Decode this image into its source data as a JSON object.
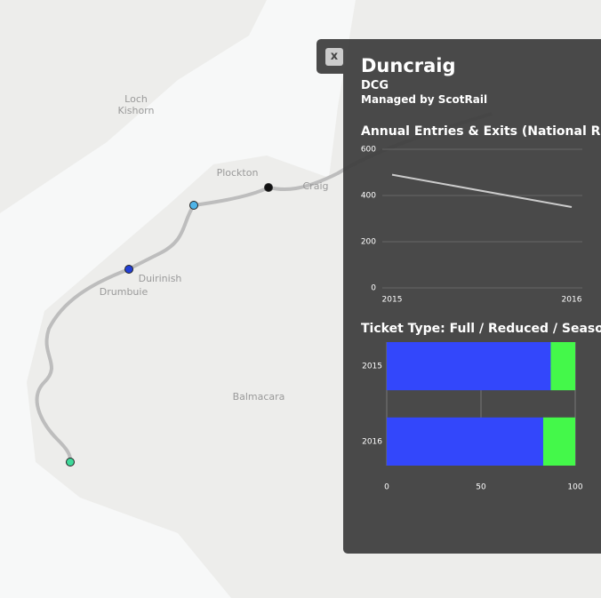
{
  "map": {
    "labels": [
      "Loch",
      "Kishorn",
      "Plockton",
      "Craig",
      "Duirinish",
      "Drumbuie",
      "Balmacara"
    ]
  },
  "panel": {
    "close": "x",
    "title": "Duncraig",
    "code": "DCG",
    "manager": "Managed by ScotRail"
  },
  "chart_data": [
    {
      "type": "line",
      "title": "Annual Entries & Exits (National Rail)",
      "categories": [
        "2015",
        "2016"
      ],
      "values": [
        490,
        350
      ],
      "color": "#cccccc",
      "ylim": [
        0,
        600
      ],
      "yticks": [
        0,
        200,
        400,
        600
      ],
      "grid": true
    },
    {
      "type": "hbar-stacked",
      "title": "Ticket Type: Full / Reduced / Season",
      "categories": [
        "2015",
        "2016"
      ],
      "series": [
        {
          "name": "Full",
          "color": "#3347fb",
          "values": [
            87,
            83
          ]
        },
        {
          "name": "Reduced",
          "color": "#44f84a",
          "values": [
            13,
            17
          ]
        }
      ],
      "xlim": [
        0,
        100
      ],
      "xticks": [
        0,
        50,
        100
      ],
      "grid": true
    }
  ]
}
